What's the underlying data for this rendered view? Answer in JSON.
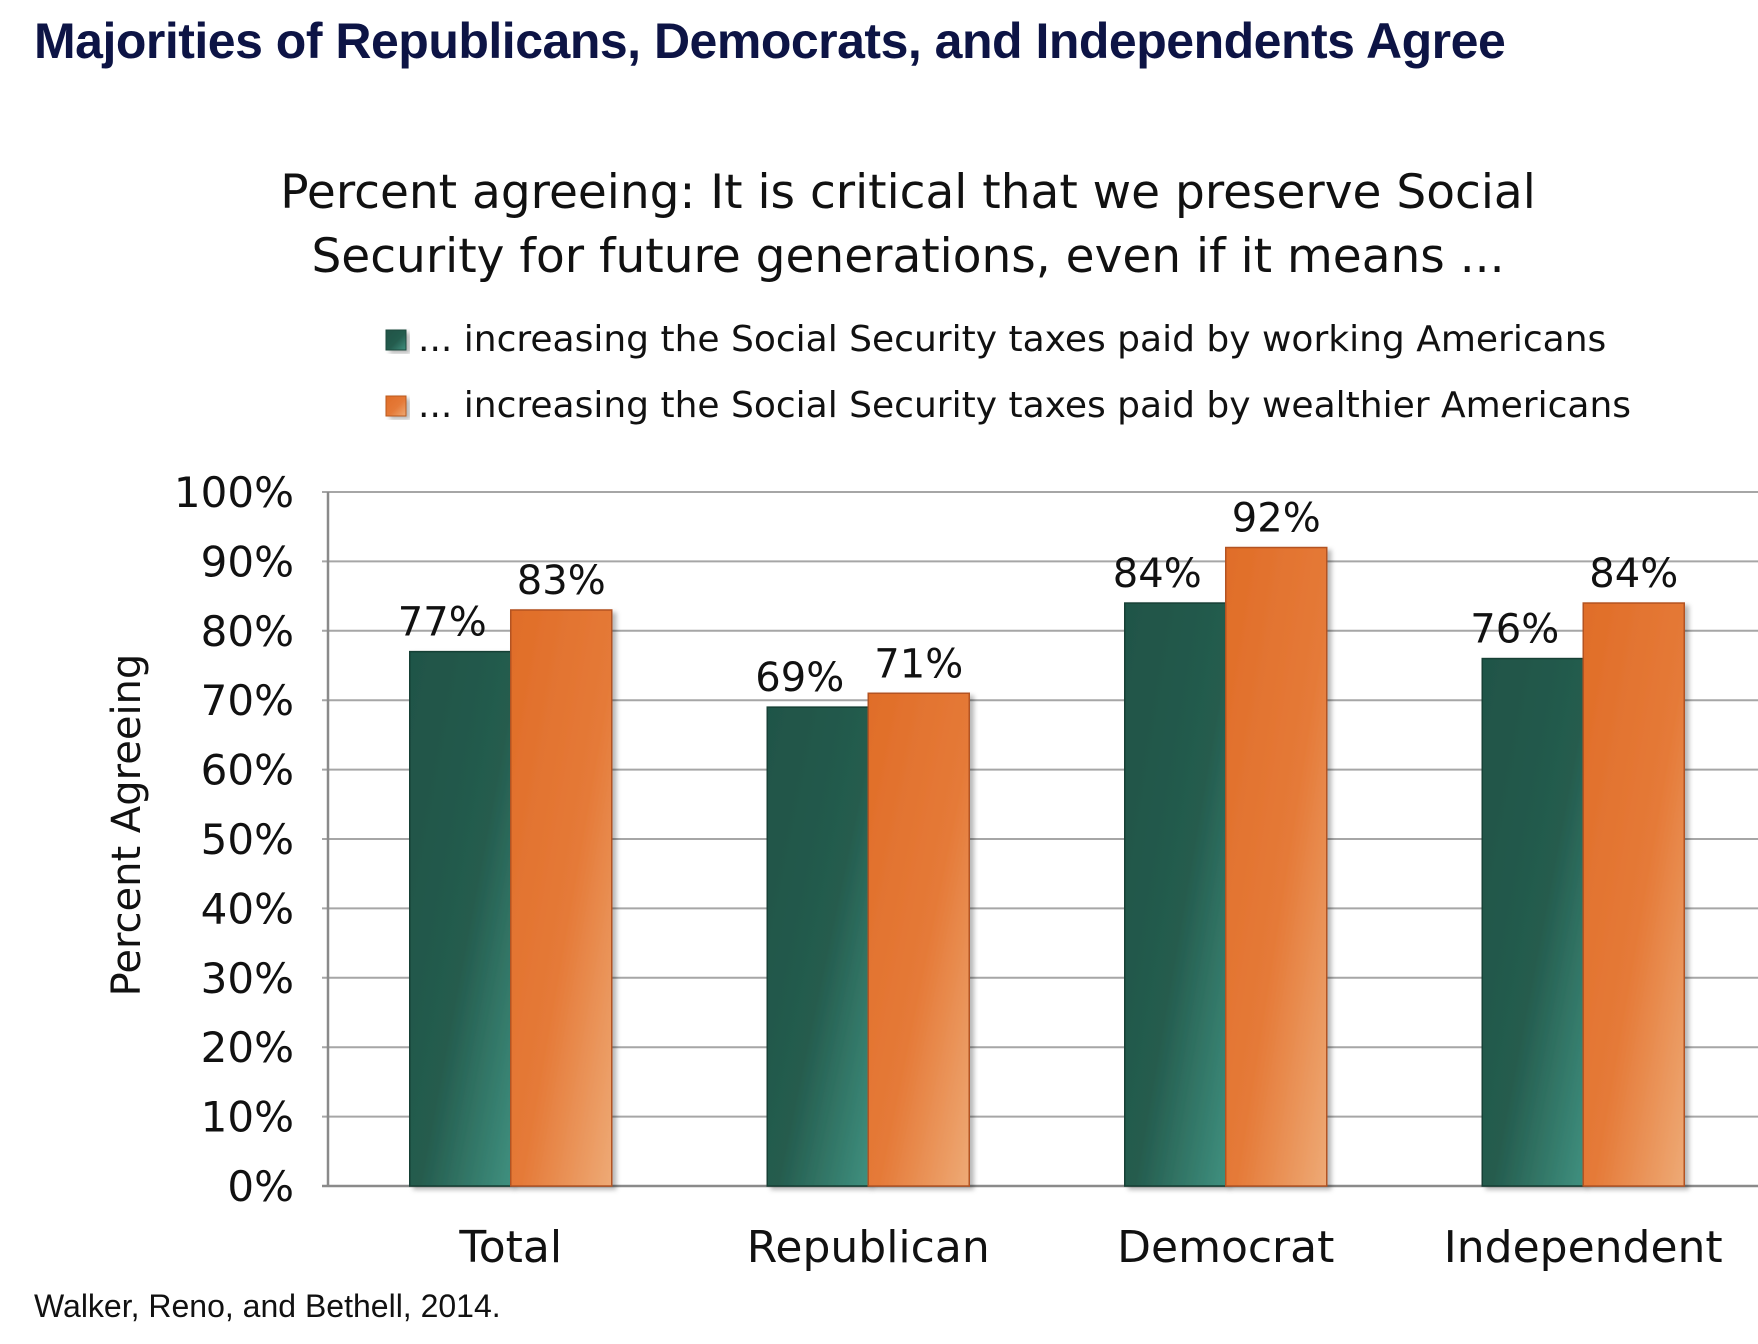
{
  "headline": "Majorities of Republicans, Democrats, and Independents Agree",
  "source": "Walker, Reno, and Bethell, 2014.",
  "chart_data": {
    "type": "bar",
    "title_lines": [
      "Percent agreeing: It is critical that we preserve Social",
      "Security for future generations, even if it means ..."
    ],
    "ylabel": "Percent  Agreeing",
    "xlabel": "",
    "ylim": [
      0,
      100
    ],
    "yticks": [
      "0%",
      "10%",
      "20%",
      "30%",
      "40%",
      "50%",
      "60%",
      "70%",
      "80%",
      "90%",
      "100%"
    ],
    "categories": [
      "Total",
      "Republican",
      "Democrat",
      "Independent"
    ],
    "grid": true,
    "legend_position": "top-right",
    "series": [
      {
        "name": "... increasing the Social Security taxes paid by working Americans",
        "values": [
          77,
          69,
          84,
          76
        ],
        "labels": [
          "77%",
          "69%",
          "84%",
          "76%"
        ],
        "color": "#245c4f"
      },
      {
        "name": "... increasing the Social Security taxes paid by wealthier Americans",
        "values": [
          83,
          71,
          92,
          84
        ],
        "labels": [
          "83%",
          "71%",
          "92%",
          "84%"
        ],
        "color": "#e47432"
      }
    ]
  }
}
